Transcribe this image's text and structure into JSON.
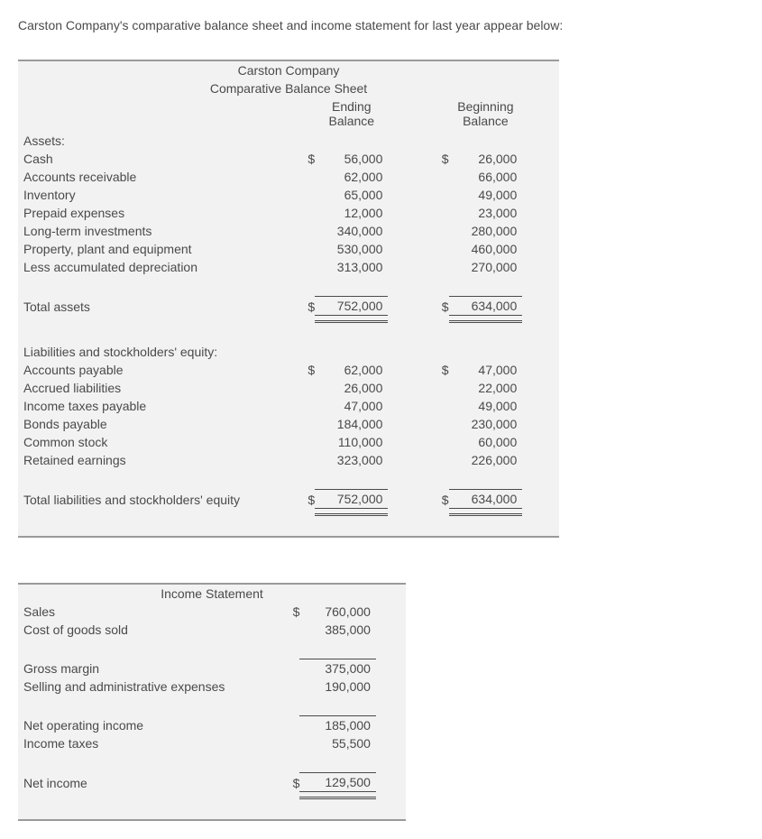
{
  "intro_text": "Carston Company's comparative balance sheet and income statement for last year appear below:",
  "balance_sheet": {
    "company": "Carston Company",
    "title": "Comparative Balance Sheet",
    "col_ending": "Ending Balance",
    "col_beginning": "Beginning Balance",
    "section_assets": "Assets:",
    "rows_assets": [
      {
        "label": "Cash",
        "end_sym": "$",
        "end": "56,000",
        "beg_sym": "$",
        "beg": "26,000"
      },
      {
        "label": "Accounts receivable",
        "end_sym": "",
        "end": "62,000",
        "beg_sym": "",
        "beg": "66,000"
      },
      {
        "label": "Inventory",
        "end_sym": "",
        "end": "65,000",
        "beg_sym": "",
        "beg": "49,000"
      },
      {
        "label": "Prepaid expenses",
        "end_sym": "",
        "end": "12,000",
        "beg_sym": "",
        "beg": "23,000"
      },
      {
        "label": "Long-term investments",
        "end_sym": "",
        "end": "340,000",
        "beg_sym": "",
        "beg": "280,000"
      },
      {
        "label": "Property, plant and equipment",
        "end_sym": "",
        "end": "530,000",
        "beg_sym": "",
        "beg": "460,000"
      },
      {
        "label": "Less accumulated depreciation",
        "end_sym": "",
        "end": "313,000",
        "beg_sym": "",
        "beg": "270,000"
      }
    ],
    "total_assets": {
      "label": "Total assets",
      "end_sym": "$",
      "end": "752,000",
      "beg_sym": "$",
      "beg": "634,000"
    },
    "section_liab": "Liabilities and stockholders' equity:",
    "rows_liab": [
      {
        "label": "Accounts payable",
        "end_sym": "$",
        "end": "62,000",
        "beg_sym": "$",
        "beg": "47,000"
      },
      {
        "label": "Accrued liabilities",
        "end_sym": "",
        "end": "26,000",
        "beg_sym": "",
        "beg": "22,000"
      },
      {
        "label": "Income taxes payable",
        "end_sym": "",
        "end": "47,000",
        "beg_sym": "",
        "beg": "49,000"
      },
      {
        "label": "Bonds payable",
        "end_sym": "",
        "end": "184,000",
        "beg_sym": "",
        "beg": "230,000"
      },
      {
        "label": "Common stock",
        "end_sym": "",
        "end": "110,000",
        "beg_sym": "",
        "beg": "60,000"
      },
      {
        "label": "Retained earnings",
        "end_sym": "",
        "end": "323,000",
        "beg_sym": "",
        "beg": "226,000"
      }
    ],
    "total_liab": {
      "label": "Total liabilities and stockholders' equity",
      "end_sym": "$",
      "end": "752,000",
      "beg_sym": "$",
      "beg": "634,000"
    }
  },
  "income_statement": {
    "title": "Income Statement",
    "rows": [
      {
        "label": "Sales",
        "sym": "$",
        "val": "760,000",
        "top_line": false
      },
      {
        "label": "Cost of goods sold",
        "sym": "",
        "val": "385,000",
        "top_line": false
      },
      {
        "label": "Gross margin",
        "sym": "",
        "val": "375,000",
        "top_line": true
      },
      {
        "label": "Selling and administrative expenses",
        "sym": "",
        "val": "190,000",
        "top_line": false
      },
      {
        "label": "Net operating income",
        "sym": "",
        "val": "185,000",
        "top_line": true
      },
      {
        "label": "Income taxes",
        "sym": "",
        "val": "55,500",
        "top_line": false
      },
      {
        "label": "Net income",
        "sym": "$",
        "val": "129,500",
        "top_line": true
      }
    ]
  },
  "colors": {
    "text": "#4a4a4a",
    "table_bg": "#f2f2f2",
    "border": "#9a9a9a",
    "line": "#4a4a4a"
  },
  "font_size_pt": 10
}
